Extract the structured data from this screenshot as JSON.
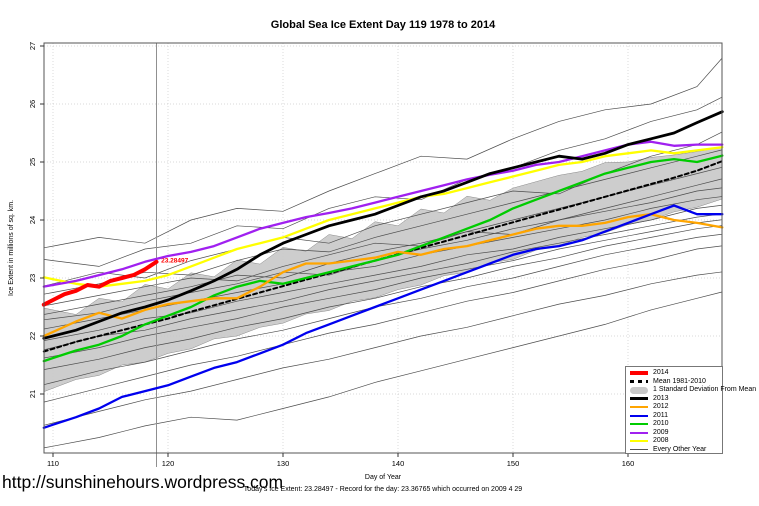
{
  "title": "Global Sea Ice Extent Day 119 1978 to 2014",
  "footer": {
    "url": "http://sunshinehours.wordpress.com",
    "stats": "Today's Ice Extent: 23.28497  - Record for the day: 23.36765 which occurred on 2009 4 29"
  },
  "legend": {
    "items": [
      {
        "label": "2014",
        "color": "#FF0000",
        "swatch": "thick"
      },
      {
        "label": "Mean 1981-2010",
        "color": "#000000",
        "swatch": "dashed"
      },
      {
        "label": "1 Standard Deviation From Mean",
        "color": "#C8C8C8",
        "swatch": "band"
      },
      {
        "label": "2013",
        "color": "#000000",
        "swatch": "mediumline"
      },
      {
        "label": "2012",
        "color": "#FFA500",
        "swatch": "line"
      },
      {
        "label": "2011",
        "color": "#0000EE",
        "swatch": "line"
      },
      {
        "label": "2010",
        "color": "#00CC00",
        "swatch": "line"
      },
      {
        "label": "2009",
        "color": "#A020F0",
        "swatch": "line"
      },
      {
        "label": "2008",
        "color": "#FFFF00",
        "swatch": "line"
      },
      {
        "label": "Every Other Year",
        "color": "#555555",
        "swatch": "thin"
      }
    ]
  },
  "chart_data": {
    "type": "line",
    "title": "Global Sea Ice Extent Day 119 1978 to 2014",
    "xlabel": "Day of Year",
    "ylabel": "Ice Extent in millions of sq. km.",
    "xlim": [
      109.2,
      168.2
    ],
    "ylim": [
      20.0,
      27.07
    ],
    "xticks": [
      110,
      120,
      130,
      140,
      150,
      160
    ],
    "yticks": [
      21,
      22,
      23,
      24,
      25,
      26,
      27
    ],
    "grid": "dotted",
    "legend_position": "bottom-right",
    "marker_day": 119,
    "annotation": {
      "text": "23.28497",
      "x": 119.4,
      "y": 23.27,
      "color": "#FF0000"
    },
    "x": [
      110,
      112,
      114,
      116,
      118,
      120,
      122,
      124,
      126,
      128,
      130,
      132,
      134,
      136,
      138,
      140,
      142,
      144,
      146,
      148,
      150,
      152,
      154,
      156,
      158,
      160,
      162,
      164,
      166,
      168
    ],
    "band": {
      "name": "1 Standard Deviation From Mean",
      "fill": "#C8C8C8",
      "upper": [
        22.45,
        22.37,
        22.65,
        22.59,
        22.89,
        22.81,
        23.09,
        23.02,
        23.31,
        23.24,
        23.53,
        23.46,
        23.75,
        23.68,
        23.97,
        23.9,
        24.19,
        24.12,
        24.41,
        24.34,
        24.55,
        24.66,
        24.77,
        24.84,
        24.99,
        25.0,
        25.08,
        25.12,
        25.18,
        25.25
      ],
      "lower": [
        21.1,
        21.25,
        21.32,
        21.5,
        21.55,
        21.7,
        21.78,
        21.95,
        22.0,
        22.15,
        22.22,
        22.38,
        22.44,
        22.6,
        22.66,
        22.8,
        22.88,
        23.04,
        23.1,
        23.26,
        23.32,
        23.48,
        23.56,
        23.7,
        23.78,
        23.92,
        24.0,
        24.14,
        24.22,
        24.35
      ]
    },
    "series": [
      {
        "name": "Mean 1981-2010",
        "color": "#000000",
        "width": 2.0,
        "dash": "4,3",
        "values": [
          21.78,
          21.9,
          22.0,
          22.1,
          22.2,
          22.3,
          22.42,
          22.53,
          22.64,
          22.75,
          22.86,
          22.97,
          23.08,
          23.19,
          23.3,
          23.41,
          23.52,
          23.63,
          23.74,
          23.85,
          23.96,
          24.07,
          24.18,
          24.29,
          24.4,
          24.51,
          24.62,
          24.73,
          24.85,
          25.0
        ]
      },
      {
        "name": "2010",
        "color": "#00CC00",
        "width": 2.3,
        "values": [
          21.62,
          21.75,
          21.85,
          22.0,
          22.2,
          22.35,
          22.5,
          22.7,
          22.85,
          22.95,
          22.9,
          23.0,
          23.1,
          23.2,
          23.3,
          23.4,
          23.55,
          23.7,
          23.85,
          24.0,
          24.2,
          24.35,
          24.5,
          24.65,
          24.8,
          24.9,
          25.0,
          25.05,
          25.0,
          25.1
        ]
      },
      {
        "name": "2012",
        "color": "#FFA500",
        "width": 2.3,
        "values": [
          22.07,
          22.25,
          22.4,
          22.3,
          22.45,
          22.55,
          22.6,
          22.65,
          22.65,
          22.85,
          23.1,
          23.25,
          23.25,
          23.3,
          23.35,
          23.45,
          23.4,
          23.5,
          23.55,
          23.65,
          23.75,
          23.85,
          23.9,
          23.9,
          23.95,
          24.05,
          24.1,
          24.0,
          23.95,
          23.88
        ]
      },
      {
        "name": "2011",
        "color": "#0000EE",
        "width": 2.3,
        "values": [
          20.47,
          20.6,
          20.75,
          20.95,
          21.05,
          21.15,
          21.3,
          21.45,
          21.55,
          21.7,
          21.85,
          22.05,
          22.2,
          22.35,
          22.5,
          22.65,
          22.8,
          22.95,
          23.1,
          23.25,
          23.4,
          23.5,
          23.55,
          23.65,
          23.8,
          23.95,
          24.1,
          24.25,
          24.1,
          24.1
        ]
      },
      {
        "name": "2008",
        "color": "#FFFF00",
        "width": 2.3,
        "values": [
          22.98,
          22.9,
          22.85,
          22.9,
          22.95,
          23.05,
          23.2,
          23.35,
          23.5,
          23.6,
          23.7,
          23.85,
          24.0,
          24.1,
          24.2,
          24.3,
          24.4,
          24.45,
          24.55,
          24.65,
          24.75,
          24.85,
          24.95,
          25.0,
          25.1,
          25.15,
          25.2,
          25.15,
          25.2,
          25.25
        ]
      },
      {
        "name": "2009",
        "color": "#A020F0",
        "width": 2.3,
        "values": [
          22.88,
          22.95,
          23.05,
          23.15,
          23.28,
          23.38,
          23.45,
          23.55,
          23.7,
          23.85,
          23.95,
          24.05,
          24.12,
          24.2,
          24.3,
          24.4,
          24.5,
          24.6,
          24.7,
          24.78,
          24.85,
          24.95,
          25.0,
          25.1,
          25.2,
          25.3,
          25.35,
          25.28,
          25.3,
          25.3
        ]
      },
      {
        "name": "2013",
        "color": "#000000",
        "width": 2.8,
        "values": [
          22.0,
          22.1,
          22.25,
          22.4,
          22.5,
          22.62,
          22.78,
          22.95,
          23.15,
          23.4,
          23.6,
          23.75,
          23.9,
          24.0,
          24.1,
          24.25,
          24.4,
          24.5,
          24.65,
          24.8,
          24.9,
          25.0,
          25.1,
          25.05,
          25.15,
          25.3,
          25.4,
          25.5,
          25.68,
          25.85
        ]
      },
      {
        "name": "2014",
        "color": "#FF0000",
        "width": 4.0,
        "x": [
          110,
          111,
          112,
          113,
          114,
          115,
          116,
          117,
          118,
          119
        ],
        "values": [
          22.62,
          22.72,
          22.78,
          22.88,
          22.85,
          22.95,
          23.0,
          23.05,
          23.15,
          23.28
        ]
      }
    ],
    "every_other_year": {
      "name": "Every Other Year",
      "color": "#4d4d4d",
      "width": 0.7,
      "x": [
        110,
        114,
        118,
        122,
        126,
        130,
        134,
        138,
        142,
        146,
        150,
        154,
        158,
        162,
        166,
        168
      ],
      "lines": [
        [
          23.55,
          23.7,
          23.6,
          24.0,
          24.2,
          24.15,
          24.5,
          24.8,
          25.1,
          25.05,
          25.4,
          25.7,
          25.9,
          26.0,
          26.3,
          26.75
        ],
        [
          23.3,
          23.2,
          23.5,
          23.6,
          23.9,
          23.85,
          24.2,
          24.4,
          24.35,
          24.7,
          24.9,
          25.2,
          25.4,
          25.7,
          25.9,
          26.1
        ],
        [
          22.9,
          23.1,
          23.0,
          23.3,
          23.5,
          23.7,
          23.6,
          23.9,
          24.1,
          24.3,
          24.5,
          24.45,
          24.8,
          25.1,
          25.3,
          25.5
        ],
        [
          22.75,
          22.9,
          23.1,
          23.05,
          23.3,
          23.5,
          23.45,
          23.7,
          23.9,
          24.1,
          24.3,
          24.5,
          24.7,
          24.9,
          25.1,
          25.2
        ],
        [
          22.55,
          22.7,
          22.85,
          23.0,
          22.95,
          23.2,
          23.4,
          23.6,
          23.55,
          23.8,
          24.0,
          24.2,
          24.4,
          24.6,
          24.8,
          24.9
        ],
        [
          22.4,
          22.55,
          22.7,
          22.85,
          23.05,
          23.0,
          23.25,
          23.45,
          23.6,
          23.8,
          23.75,
          24.0,
          24.2,
          24.4,
          24.6,
          24.7
        ],
        [
          22.3,
          22.4,
          22.6,
          22.75,
          22.9,
          23.1,
          23.05,
          23.3,
          23.5,
          23.65,
          23.85,
          24.0,
          24.15,
          24.3,
          24.5,
          24.55
        ],
        [
          22.15,
          22.3,
          22.45,
          22.6,
          22.75,
          22.9,
          23.1,
          23.2,
          23.4,
          23.55,
          23.7,
          23.85,
          24.0,
          24.2,
          24.35,
          24.4
        ],
        [
          21.95,
          22.1,
          22.3,
          22.4,
          22.6,
          22.75,
          22.9,
          23.05,
          23.2,
          23.4,
          23.5,
          23.7,
          23.85,
          24.0,
          24.2,
          24.25
        ],
        [
          21.8,
          22.0,
          22.1,
          22.3,
          22.45,
          22.6,
          22.8,
          22.95,
          23.1,
          23.25,
          23.45,
          23.6,
          23.75,
          23.9,
          24.05,
          24.1
        ],
        [
          21.65,
          21.8,
          22.0,
          22.15,
          22.3,
          22.5,
          22.65,
          22.8,
          23.0,
          23.15,
          23.3,
          23.5,
          23.65,
          23.8,
          23.95,
          24.0
        ],
        [
          21.45,
          21.6,
          21.8,
          21.95,
          22.15,
          22.3,
          22.5,
          22.65,
          22.85,
          23.0,
          23.2,
          23.35,
          23.55,
          23.7,
          23.85,
          23.9
        ],
        [
          21.2,
          21.4,
          21.55,
          21.75,
          21.95,
          22.1,
          22.3,
          22.5,
          22.65,
          22.85,
          23.0,
          23.2,
          23.4,
          23.55,
          23.7,
          23.75
        ],
        [
          20.9,
          21.1,
          21.3,
          21.5,
          21.65,
          21.85,
          22.05,
          22.2,
          22.4,
          22.6,
          22.75,
          22.95,
          23.15,
          23.3,
          23.5,
          23.55
        ],
        [
          20.5,
          20.7,
          20.9,
          21.05,
          21.25,
          21.45,
          21.6,
          21.8,
          22.0,
          22.15,
          22.35,
          22.55,
          22.7,
          22.9,
          23.05,
          23.1
        ],
        [
          20.1,
          20.25,
          20.45,
          20.6,
          20.55,
          20.75,
          20.95,
          21.2,
          21.4,
          21.6,
          21.8,
          22.0,
          22.2,
          22.45,
          22.65,
          22.75
        ]
      ]
    }
  }
}
